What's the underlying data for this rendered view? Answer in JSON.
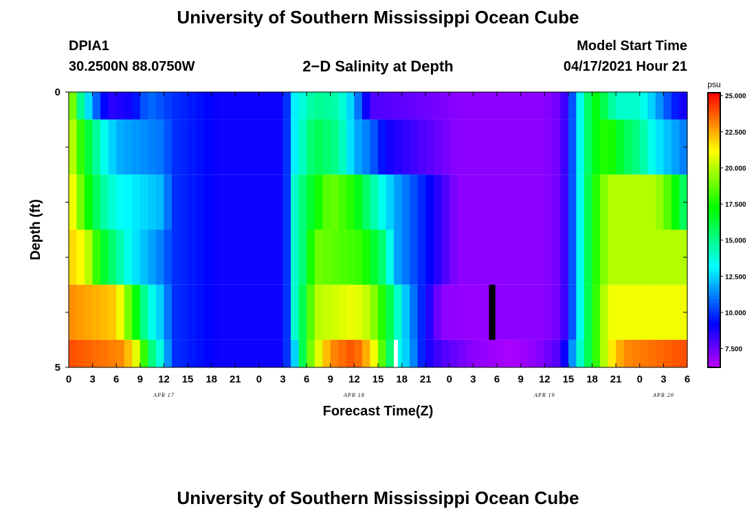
{
  "header": {
    "title": "University of Southern Mississippi Ocean Cube",
    "station": "DPIA1",
    "coords": "30.2500N  88.0750W",
    "subtitle": "2−D Salinity at Depth",
    "model_start_label": "Model Start Time",
    "model_start_value": "04/17/2021 Hour 21"
  },
  "footer": {
    "title": "University of Southern Mississippi Ocean Cube"
  },
  "chart_data": {
    "type": "heatmap",
    "xlabel": "Forecast Time(Z)",
    "ylabel": "Depth (ft)",
    "x_start_hour": 0,
    "x_end_hour": 78,
    "xlim": [
      0,
      78
    ],
    "ylim": [
      0,
      5
    ],
    "x_tick_labels": [
      "0",
      "3",
      "6",
      "9",
      "12",
      "15",
      "18",
      "21",
      "0",
      "3",
      "6",
      "9",
      "12",
      "15",
      "18",
      "21",
      "0",
      "3",
      "6",
      "9",
      "12",
      "15",
      "18",
      "21",
      "0",
      "3",
      "6"
    ],
    "y_tick_labels": [
      "0",
      "5"
    ],
    "date_labels": [
      {
        "label": "APR 17",
        "hour": 12
      },
      {
        "label": "APR 18",
        "hour": 36
      },
      {
        "label": "APR 19",
        "hour": 60
      },
      {
        "label": "APR 20",
        "hour": 75
      }
    ],
    "colorbar": {
      "unit": "psu",
      "min": 6.2,
      "max": 25.2,
      "tick_labels": [
        "25.000",
        "22.500",
        "20.000",
        "17.500",
        "15.000",
        "12.500",
        "10.000",
        "7.500"
      ],
      "tick_values": [
        25,
        22.5,
        20,
        17.5,
        15,
        12.5,
        10,
        7.5
      ]
    },
    "layers": [
      {
        "depth_range": [
          0,
          0.5
        ],
        "keys": [
          [
            0,
            21
          ],
          [
            0.5,
            19
          ],
          [
            1.5,
            15
          ],
          [
            3,
            11.5
          ],
          [
            5,
            8.5
          ],
          [
            8,
            9
          ],
          [
            10,
            11
          ],
          [
            13,
            10
          ],
          [
            19,
            9
          ],
          [
            27,
            9
          ],
          [
            28,
            11
          ],
          [
            28.5,
            13
          ],
          [
            31,
            15
          ],
          [
            34,
            14.5
          ],
          [
            36,
            12
          ],
          [
            38,
            8
          ],
          [
            45,
            7.5
          ],
          [
            49,
            7
          ],
          [
            55,
            7
          ],
          [
            60,
            7
          ],
          [
            62,
            7.5
          ],
          [
            63,
            9
          ],
          [
            64,
            12
          ],
          [
            65,
            15
          ],
          [
            66.5,
            17
          ],
          [
            67.5,
            16
          ],
          [
            69,
            14
          ],
          [
            72,
            14
          ],
          [
            74,
            12
          ],
          [
            76,
            10
          ],
          [
            78,
            8.5
          ]
        ]
      },
      {
        "depth_range": [
          0.5,
          1.5
        ],
        "keys": [
          [
            0,
            21
          ],
          [
            1,
            19
          ],
          [
            2,
            17
          ],
          [
            4,
            14
          ],
          [
            5,
            13
          ],
          [
            6,
            12
          ],
          [
            12,
            11
          ],
          [
            13,
            10
          ],
          [
            19,
            9
          ],
          [
            27,
            9
          ],
          [
            28,
            11
          ],
          [
            28.5,
            13
          ],
          [
            31,
            16
          ],
          [
            34,
            15
          ],
          [
            36,
            12
          ],
          [
            38,
            11
          ],
          [
            40,
            9
          ],
          [
            49,
            7
          ],
          [
            55,
            7
          ],
          [
            60,
            7
          ],
          [
            62,
            7.5
          ],
          [
            63,
            9
          ],
          [
            64,
            12
          ],
          [
            65,
            15
          ],
          [
            66.5,
            17
          ],
          [
            68,
            18
          ],
          [
            70,
            16
          ],
          [
            72,
            15
          ],
          [
            74,
            13
          ],
          [
            76,
            12
          ],
          [
            78,
            11
          ]
        ]
      },
      {
        "depth_range": [
          1.5,
          2.5
        ],
        "keys": [
          [
            0,
            22
          ],
          [
            1,
            20
          ],
          [
            2,
            18
          ],
          [
            4,
            15
          ],
          [
            6,
            13.5
          ],
          [
            12,
            12
          ],
          [
            13,
            10
          ],
          [
            19,
            9
          ],
          [
            27,
            9
          ],
          [
            28,
            11
          ],
          [
            28.5,
            14
          ],
          [
            30,
            16
          ],
          [
            33,
            19
          ],
          [
            36,
            17.5
          ],
          [
            38,
            15
          ],
          [
            40,
            13
          ],
          [
            41,
            12
          ],
          [
            49,
            7
          ],
          [
            55,
            7
          ],
          [
            60,
            7
          ],
          [
            62,
            7.5
          ],
          [
            63,
            9
          ],
          [
            64,
            12
          ],
          [
            65,
            15
          ],
          [
            66,
            17
          ],
          [
            68,
            20
          ],
          [
            74,
            20
          ],
          [
            76,
            18
          ],
          [
            78,
            15
          ]
        ]
      },
      {
        "depth_range": [
          2.5,
          3.5
        ],
        "keys": [
          [
            0,
            22
          ],
          [
            2,
            21
          ],
          [
            4,
            17
          ],
          [
            6,
            15
          ],
          [
            8,
            13
          ],
          [
            12,
            11
          ],
          [
            13,
            10
          ],
          [
            19,
            9
          ],
          [
            27,
            9
          ],
          [
            28,
            11
          ],
          [
            28.5,
            14
          ],
          [
            30,
            16
          ],
          [
            31,
            19
          ],
          [
            37,
            18
          ],
          [
            38,
            17
          ],
          [
            40,
            15
          ],
          [
            41,
            12
          ],
          [
            49,
            7
          ],
          [
            55,
            7
          ],
          [
            60,
            7
          ],
          [
            62,
            7.5
          ],
          [
            63,
            9
          ],
          [
            64,
            12
          ],
          [
            65,
            15
          ],
          [
            66,
            17
          ],
          [
            68,
            20
          ],
          [
            78,
            20
          ]
        ]
      },
      {
        "depth_range": [
          3.5,
          4.5
        ],
        "keys": [
          [
            0,
            23
          ],
          [
            6,
            22
          ],
          [
            8,
            18
          ],
          [
            10,
            14
          ],
          [
            12,
            12
          ],
          [
            13,
            10
          ],
          [
            19,
            9
          ],
          [
            27,
            9
          ],
          [
            28,
            11
          ],
          [
            28.5,
            14
          ],
          [
            30,
            17
          ],
          [
            31,
            20
          ],
          [
            36,
            21
          ],
          [
            38,
            20
          ],
          [
            40,
            17
          ],
          [
            42,
            13
          ],
          [
            43.5,
            11
          ],
          [
            46,
            8
          ],
          [
            47,
            7
          ],
          [
            51,
            6.8
          ],
          [
            54,
            7
          ],
          [
            60,
            7
          ],
          [
            62,
            7.5
          ],
          [
            63,
            9
          ],
          [
            64,
            12
          ],
          [
            65,
            15
          ],
          [
            66,
            17
          ],
          [
            68,
            21
          ],
          [
            78,
            21
          ]
        ]
      },
      {
        "depth_range": [
          4.5,
          5
        ],
        "keys": [
          [
            0,
            24
          ],
          [
            7,
            23
          ],
          [
            9,
            20
          ],
          [
            10,
            16
          ],
          [
            12,
            13
          ],
          [
            13,
            10
          ],
          [
            19,
            9
          ],
          [
            27,
            9
          ],
          [
            28,
            11
          ],
          [
            29,
            14
          ],
          [
            30,
            18
          ],
          [
            31,
            20
          ],
          [
            33,
            23
          ],
          [
            36,
            24
          ],
          [
            38,
            22
          ],
          [
            39,
            20
          ],
          [
            41,
            14
          ],
          [
            43,
            12
          ],
          [
            45,
            9
          ],
          [
            47,
            8
          ],
          [
            51,
            7
          ],
          [
            56,
            6.5
          ],
          [
            59,
            7
          ],
          [
            62,
            8
          ],
          [
            63,
            10
          ],
          [
            64,
            13
          ],
          [
            65,
            15
          ],
          [
            66,
            17
          ],
          [
            68,
            21
          ],
          [
            70,
            23
          ],
          [
            78,
            24
          ]
        ]
      }
    ],
    "overlays": [
      {
        "x": [
          41,
          41.5
        ],
        "depth_range": [
          4.5,
          5
        ],
        "color": "#ffffff"
      },
      {
        "x": [
          53,
          53.8
        ],
        "depth_range": [
          3.5,
          4.5
        ],
        "color": "#000000"
      }
    ]
  }
}
